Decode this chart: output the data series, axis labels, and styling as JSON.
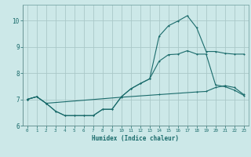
{
  "xlabel": "Humidex (Indice chaleur)",
  "background_color": "#cce8e8",
  "grid_color": "#aac8c8",
  "line_color": "#1a6b6b",
  "xlim": [
    -0.5,
    23.5
  ],
  "ylim": [
    6.0,
    10.6
  ],
  "yticks": [
    6,
    7,
    8,
    9,
    10
  ],
  "xticks": [
    0,
    1,
    2,
    3,
    4,
    5,
    6,
    7,
    8,
    9,
    10,
    11,
    12,
    13,
    14,
    15,
    16,
    17,
    18,
    19,
    20,
    21,
    22,
    23
  ],
  "line1_x": [
    0,
    1,
    2,
    3,
    4,
    5,
    6,
    7,
    8,
    9,
    10,
    11,
    12,
    13,
    14,
    15,
    16,
    17,
    18,
    19,
    20,
    21,
    22,
    23
  ],
  "line1_y": [
    7.0,
    7.1,
    6.85,
    6.55,
    6.38,
    6.38,
    6.38,
    6.38,
    6.62,
    6.62,
    7.1,
    7.4,
    7.6,
    7.78,
    8.45,
    8.7,
    8.72,
    8.85,
    8.72,
    8.72,
    7.55,
    7.48,
    7.35,
    7.15
  ],
  "line2_x": [
    0,
    1,
    2,
    3,
    4,
    5,
    6,
    7,
    8,
    9,
    10,
    11,
    12,
    13,
    14,
    15,
    16,
    17,
    18,
    19,
    20,
    21,
    22,
    23
  ],
  "line2_y": [
    7.0,
    7.1,
    6.85,
    6.55,
    6.38,
    6.38,
    6.38,
    6.38,
    6.62,
    6.62,
    7.1,
    7.4,
    7.6,
    7.78,
    9.4,
    9.8,
    9.98,
    10.18,
    9.72,
    8.82,
    8.82,
    8.75,
    8.72,
    8.72
  ],
  "line3_x": [
    0,
    1,
    2,
    10,
    14,
    18,
    19,
    20,
    21,
    22,
    23
  ],
  "line3_y": [
    7.0,
    7.1,
    6.85,
    7.08,
    7.18,
    7.28,
    7.3,
    7.45,
    7.52,
    7.45,
    7.18
  ]
}
